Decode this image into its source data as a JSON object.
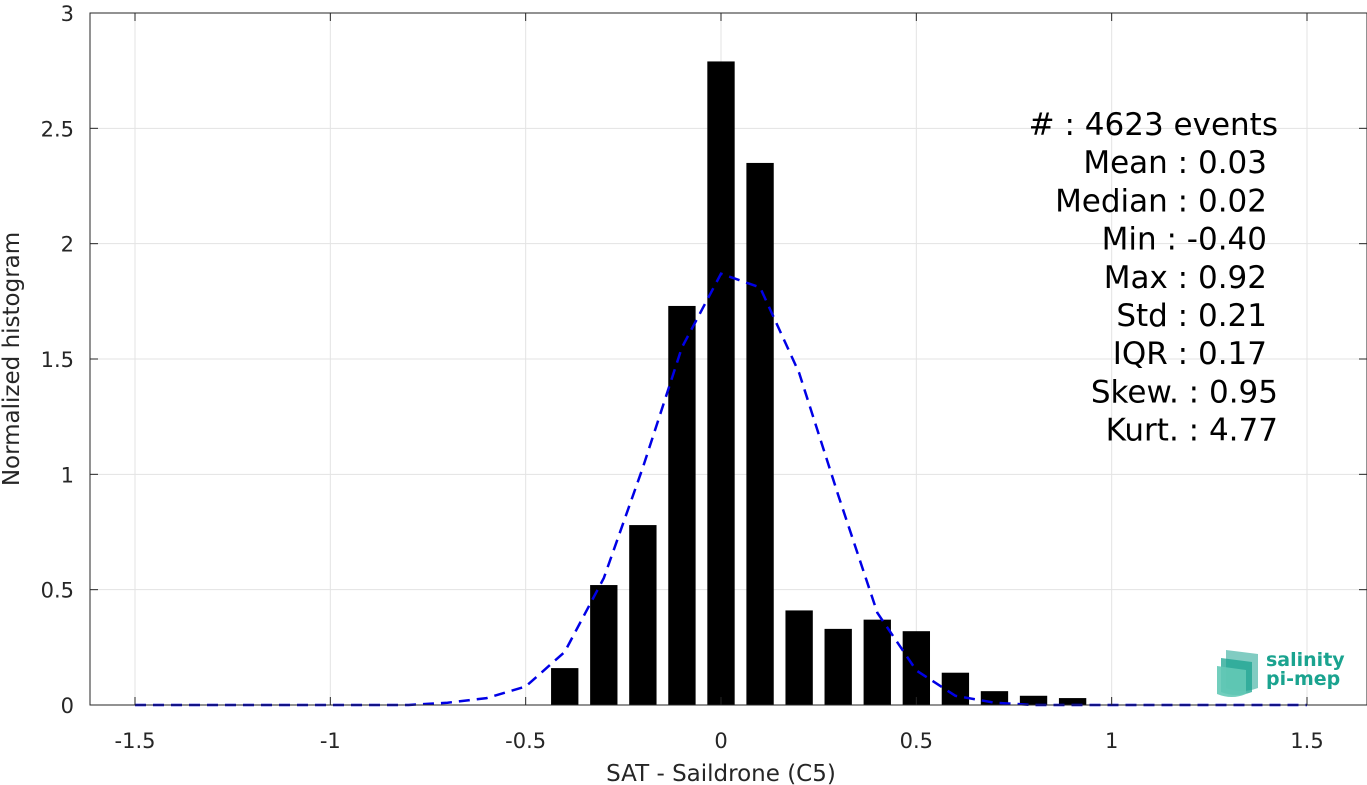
{
  "chart_data": {
    "type": "bar",
    "xlabel": "SAT - Saildrone (C5)",
    "ylabel": "Normalized histogram",
    "xlim": [
      -1.5,
      1.5
    ],
    "ylim": [
      0,
      3
    ],
    "xticks": [
      "-1.5",
      "-1",
      "-0.5",
      "0",
      "0.5",
      "1",
      "1.5"
    ],
    "xtick_values": [
      -1.5,
      -1,
      -0.5,
      0,
      0.5,
      1,
      1.5
    ],
    "yticks": [
      "0",
      "0.5",
      "1",
      "1.5",
      "2",
      "2.5",
      "3"
    ],
    "ytick_values": [
      0,
      0.5,
      1,
      1.5,
      2,
      2.5,
      3
    ],
    "grid": true,
    "bar_color": "#000000",
    "bar_width": 0.07,
    "bars": {
      "x": [
        -0.4,
        -0.3,
        -0.2,
        -0.1,
        0.0,
        0.1,
        0.2,
        0.3,
        0.4,
        0.5,
        0.6,
        0.7,
        0.8,
        0.9
      ],
      "y": [
        0.16,
        0.52,
        0.78,
        1.73,
        2.79,
        2.35,
        0.41,
        0.33,
        0.37,
        0.32,
        0.14,
        0.06,
        0.04,
        0.03
      ]
    },
    "fit_curve": {
      "style": "dashed",
      "color": "#0000e6",
      "x": [
        -1.5,
        -1.4,
        -1.3,
        -1.2,
        -1.1,
        -1.0,
        -0.9,
        -0.8,
        -0.7,
        -0.6,
        -0.5,
        -0.4,
        -0.3,
        -0.2,
        -0.1,
        0.0,
        0.1,
        0.2,
        0.3,
        0.4,
        0.5,
        0.6,
        0.7,
        0.8,
        0.9,
        1.0,
        1.1,
        1.2,
        1.3,
        1.4,
        1.5
      ],
      "y": [
        0,
        0,
        0,
        0,
        0,
        0,
        0,
        0,
        0.01,
        0.03,
        0.08,
        0.23,
        0.55,
        1.03,
        1.55,
        1.87,
        1.81,
        1.44,
        0.91,
        0.4,
        0.15,
        0.04,
        0.01,
        0,
        0,
        0,
        0,
        0,
        0,
        0,
        0
      ]
    },
    "stats": [
      "#  : 4623 events",
      "Mean : 0.03",
      "Median : 0.02",
      "Min : -0.40",
      "Max : 0.92",
      "Std : 0.21",
      "IQR : 0.17",
      "Skew. : 0.95",
      "Kurt. : 4.77"
    ]
  },
  "logo": {
    "line1": "salinity",
    "line2": "pi-mep",
    "color": "#1aa38f"
  }
}
